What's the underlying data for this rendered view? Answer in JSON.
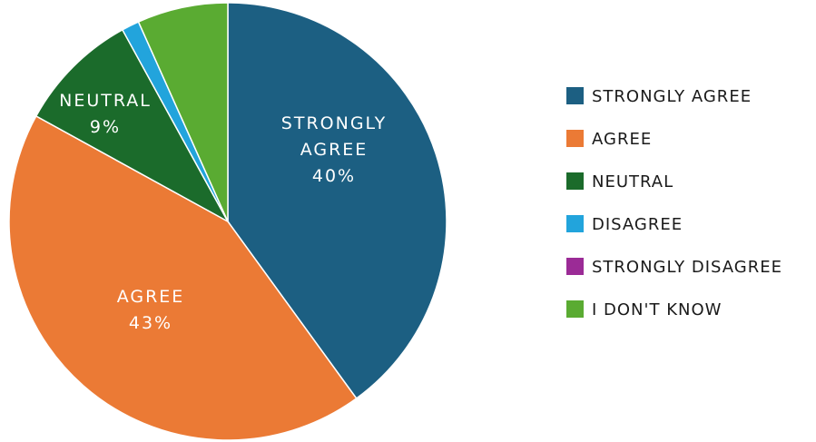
{
  "chart_data": {
    "type": "pie",
    "slices": [
      {
        "name": "STRONGLY AGREE",
        "value": 40,
        "color": "#1c5f82",
        "label_lines": [
          "STRONGLY",
          "AGREE"
        ],
        "value_label": "40%"
      },
      {
        "name": "AGREE",
        "value": 43,
        "color": "#eb7a35",
        "label_lines": [
          "AGREE"
        ],
        "value_label": "43%"
      },
      {
        "name": "NEUTRAL",
        "value": 9,
        "color": "#1b6b2b",
        "label_lines": [
          "NEUTRAL"
        ],
        "value_label": "9%"
      },
      {
        "name": "DISAGREE",
        "value": 1.3,
        "color": "#22a4dc",
        "label_lines": [],
        "value_label": ""
      },
      {
        "name": "STRONGLY DISAGREE",
        "value": 0,
        "color": "#9b2b96",
        "label_lines": [],
        "value_label": ""
      },
      {
        "name": "I DON'T KNOW",
        "value": 6.7,
        "color": "#5aab32",
        "label_lines": [],
        "value_label": ""
      }
    ],
    "legend_position": "right"
  }
}
